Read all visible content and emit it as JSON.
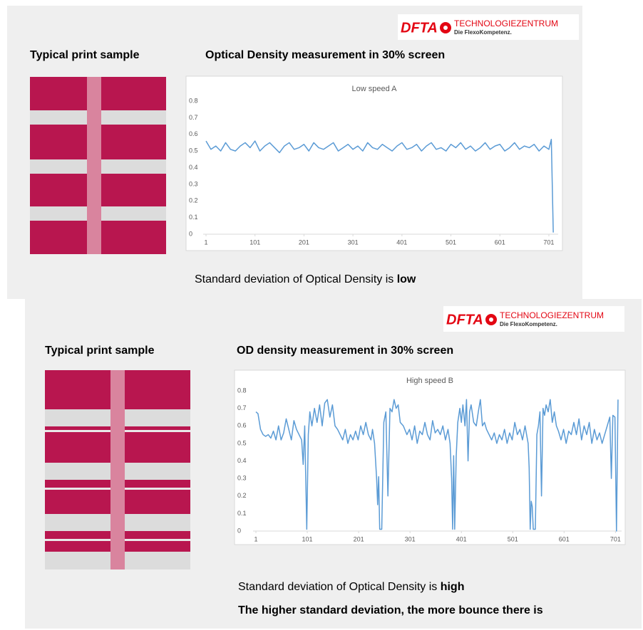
{
  "slides": [
    {
      "logo_main": "DFTA",
      "logo_top": "TECHNOLOGIEZENTRUM",
      "logo_sub": "Die FlexoKompetenz.",
      "heading_left": "Typical print sample",
      "heading_right": "Optical Density measurement in 30% screen",
      "caption_text": "Standard deviation of Optical Density is ",
      "caption_bold": "low"
    },
    {
      "logo_main": "DFTA",
      "logo_top": "TECHNOLOGIEZENTRUM",
      "logo_sub": "Die FlexoKompetenz.",
      "heading_left": "Typical print sample",
      "heading_right": "OD density measurement in 30% screen",
      "caption_text": "Standard deviation of Optical Density is ",
      "caption_bold": "high",
      "conclusion": "The higher standard deviation, the more bounce there is"
    }
  ],
  "chart_data": [
    {
      "type": "line",
      "title": "Low speed  A",
      "color": "#5b9bd5",
      "x": [
        1,
        11,
        21,
        31,
        41,
        51,
        61,
        71,
        81,
        91,
        101,
        111,
        121,
        131,
        141,
        151,
        161,
        171,
        181,
        191,
        201,
        211,
        221,
        231,
        241,
        251,
        261,
        271,
        281,
        291,
        301,
        311,
        321,
        331,
        341,
        351,
        361,
        371,
        381,
        391,
        401,
        411,
        421,
        431,
        441,
        451,
        461,
        471,
        481,
        491,
        501,
        511,
        521,
        531,
        541,
        551,
        561,
        571,
        581,
        591,
        601,
        611,
        621,
        631,
        641,
        651,
        661,
        671,
        681,
        691,
        701,
        706,
        710
      ],
      "values": [
        0.56,
        0.51,
        0.53,
        0.5,
        0.55,
        0.51,
        0.5,
        0.53,
        0.55,
        0.52,
        0.56,
        0.5,
        0.53,
        0.55,
        0.52,
        0.49,
        0.53,
        0.55,
        0.51,
        0.52,
        0.54,
        0.5,
        0.55,
        0.52,
        0.51,
        0.53,
        0.55,
        0.5,
        0.52,
        0.54,
        0.51,
        0.53,
        0.5,
        0.55,
        0.52,
        0.51,
        0.54,
        0.52,
        0.5,
        0.53,
        0.55,
        0.51,
        0.52,
        0.54,
        0.5,
        0.53,
        0.55,
        0.51,
        0.52,
        0.5,
        0.54,
        0.52,
        0.55,
        0.51,
        0.53,
        0.5,
        0.52,
        0.55,
        0.51,
        0.53,
        0.54,
        0.5,
        0.52,
        0.55,
        0.51,
        0.53,
        0.52,
        0.54,
        0.5,
        0.53,
        0.51,
        0.57,
        0.01
      ],
      "xlim": [
        1,
        720
      ],
      "xticks": [
        1,
        101,
        201,
        301,
        401,
        501,
        601,
        701
      ],
      "ylim": [
        0,
        0.8
      ],
      "yticks": [
        0,
        0.1,
        0.2,
        0.3,
        0.4,
        0.5,
        0.6,
        0.7,
        0.8
      ],
      "grid": false
    },
    {
      "type": "line",
      "title": "High speed B",
      "color": "#5b9bd5",
      "x": [
        1,
        5,
        10,
        15,
        20,
        25,
        30,
        35,
        40,
        45,
        50,
        55,
        60,
        65,
        70,
        75,
        80,
        85,
        90,
        93,
        96,
        100,
        103,
        106,
        110,
        115,
        120,
        125,
        130,
        135,
        140,
        145,
        150,
        155,
        160,
        165,
        170,
        175,
        180,
        185,
        190,
        195,
        200,
        205,
        210,
        215,
        220,
        225,
        228,
        232,
        236,
        238,
        240,
        242,
        246,
        250,
        254,
        258,
        262,
        266,
        270,
        274,
        278,
        282,
        288,
        295,
        300,
        305,
        310,
        315,
        320,
        325,
        330,
        335,
        340,
        345,
        350,
        355,
        360,
        365,
        370,
        375,
        379,
        382,
        384,
        386,
        388,
        391,
        394,
        398,
        401,
        404,
        408,
        411,
        414,
        417,
        420,
        425,
        430,
        434,
        438,
        442,
        446,
        450,
        455,
        460,
        465,
        470,
        475,
        480,
        485,
        490,
        495,
        500,
        505,
        510,
        515,
        520,
        525,
        528,
        531,
        533,
        535,
        537,
        539,
        541,
        545,
        548,
        551,
        554,
        557,
        560,
        563,
        566,
        570,
        574,
        578,
        582,
        586,
        590,
        595,
        600,
        605,
        610,
        615,
        620,
        625,
        630,
        635,
        640,
        645,
        650,
        655,
        660,
        665,
        670,
        675,
        680,
        685,
        690,
        693,
        696,
        700,
        703,
        706
      ],
      "values": [
        0.68,
        0.67,
        0.58,
        0.55,
        0.54,
        0.55,
        0.53,
        0.57,
        0.52,
        0.6,
        0.52,
        0.56,
        0.64,
        0.58,
        0.52,
        0.63,
        0.58,
        0.55,
        0.52,
        0.38,
        0.6,
        0.01,
        0.55,
        0.68,
        0.6,
        0.7,
        0.62,
        0.72,
        0.6,
        0.73,
        0.75,
        0.65,
        0.72,
        0.6,
        0.58,
        0.55,
        0.52,
        0.58,
        0.5,
        0.55,
        0.52,
        0.57,
        0.52,
        0.6,
        0.55,
        0.62,
        0.55,
        0.52,
        0.58,
        0.5,
        0.3,
        0.15,
        0.31,
        0.01,
        0.01,
        0.62,
        0.68,
        0.2,
        0.7,
        0.68,
        0.75,
        0.7,
        0.72,
        0.62,
        0.6,
        0.55,
        0.58,
        0.52,
        0.6,
        0.5,
        0.57,
        0.55,
        0.62,
        0.55,
        0.52,
        0.63,
        0.56,
        0.58,
        0.55,
        0.6,
        0.52,
        0.58,
        0.5,
        0.3,
        0.01,
        0.43,
        0.01,
        0.43,
        0.62,
        0.7,
        0.62,
        0.72,
        0.6,
        0.75,
        0.4,
        0.68,
        0.72,
        0.62,
        0.6,
        0.68,
        0.75,
        0.6,
        0.62,
        0.58,
        0.55,
        0.52,
        0.56,
        0.5,
        0.55,
        0.52,
        0.58,
        0.5,
        0.56,
        0.52,
        0.62,
        0.55,
        0.58,
        0.52,
        0.6,
        0.55,
        0.5,
        0.36,
        0.01,
        0.17,
        0.14,
        0.01,
        0.01,
        0.55,
        0.6,
        0.68,
        0.2,
        0.7,
        0.66,
        0.72,
        0.68,
        0.75,
        0.62,
        0.68,
        0.6,
        0.57,
        0.52,
        0.58,
        0.5,
        0.57,
        0.55,
        0.62,
        0.55,
        0.64,
        0.52,
        0.6,
        0.55,
        0.62,
        0.5,
        0.58,
        0.52,
        0.56,
        0.5,
        0.55,
        0.6,
        0.65,
        0.3,
        0.66,
        0.65,
        0.0,
        0.75
      ],
      "xlim": [
        1,
        713
      ],
      "xticks": [
        1,
        101,
        201,
        301,
        401,
        501,
        601,
        701
      ],
      "ylim": [
        0,
        0.8
      ],
      "yticks": [
        0,
        0.1,
        0.2,
        0.3,
        0.4,
        0.5,
        0.6,
        0.7,
        0.8
      ],
      "grid": false
    }
  ]
}
